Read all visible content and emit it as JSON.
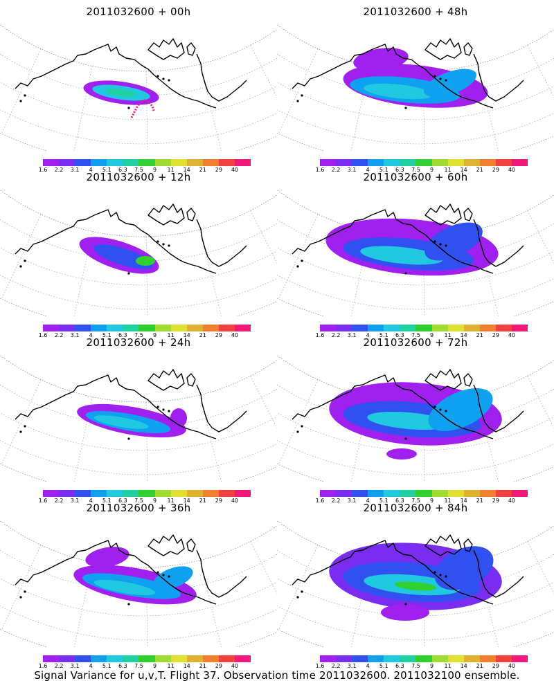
{
  "panels": [
    {
      "title": "2011032600  +  00h"
    },
    {
      "title": "2011032600  +  48h"
    },
    {
      "title": "2011032600  +  12h"
    },
    {
      "title": "2011032600  +  60h"
    },
    {
      "title": "2011032600  +  24h"
    },
    {
      "title": "2011032600  +  72h"
    },
    {
      "title": "2011032600  +  36h"
    },
    {
      "title": "2011032600  +  84h"
    }
  ],
  "colorbar": {
    "ticks": [
      "1.6",
      "2.2",
      "3.1",
      "4",
      "5.1",
      "6.3",
      "7.5",
      "9",
      "11",
      "14",
      "21",
      "29",
      "40"
    ],
    "colors": [
      "#a020f0",
      "#7a2cf0",
      "#3050f0",
      "#10a0f0",
      "#20c8e0",
      "#20d0a0",
      "#30d030",
      "#a0dc30",
      "#e0e030",
      "#e0b030",
      "#f08030",
      "#f04040",
      "#f01878"
    ]
  },
  "caption": "Signal Variance for u,v,T. Flight 37. Observation time 2011032600. 2011032100 ensemble."
}
